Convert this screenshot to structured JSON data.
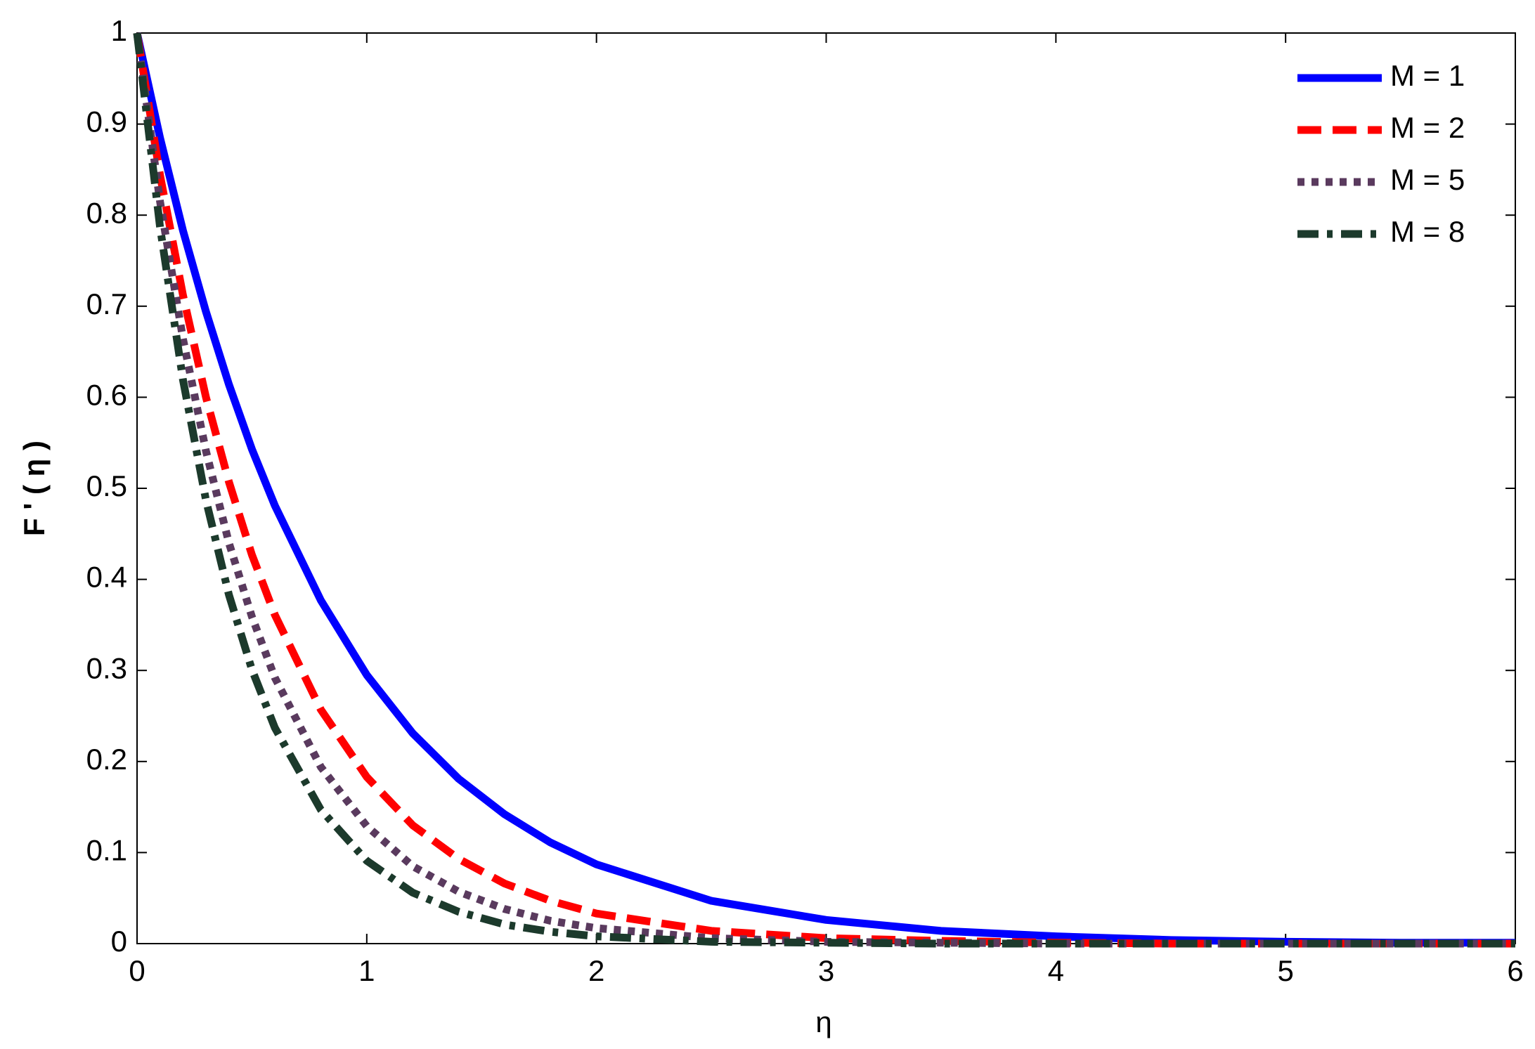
{
  "chart_data": {
    "type": "line",
    "xlabel": "η",
    "ylabel": "F ' ( η )",
    "x": [
      0,
      0.1,
      0.2,
      0.3,
      0.4,
      0.5,
      0.6,
      0.8,
      1,
      1.2,
      1.4,
      1.6,
      1.8,
      2,
      2.5,
      3,
      3.5,
      4,
      4.5,
      5,
      5.5,
      6
    ],
    "series": [
      {
        "name": "M = 1",
        "color": "#0000ff",
        "linestyle": "-",
        "values": [
          1,
          0.885,
          0.783,
          0.694,
          0.614,
          0.543,
          0.481,
          0.377,
          0.295,
          0.231,
          0.181,
          0.142,
          0.111,
          0.087,
          0.047,
          0.026,
          0.014,
          0.008,
          0.004,
          0.002,
          0.001,
          0.001
        ]
      },
      {
        "name": "M = 2",
        "color": "#ff0000",
        "linestyle": "--",
        "values": [
          1,
          0.844,
          0.712,
          0.6,
          0.507,
          0.427,
          0.361,
          0.257,
          0.183,
          0.13,
          0.093,
          0.066,
          0.047,
          0.033,
          0.014,
          0.006,
          0.003,
          0.001,
          0,
          0,
          0,
          0
        ]
      },
      {
        "name": "M = 5",
        "color": "#5a3a5e",
        "linestyle": ":",
        "values": [
          1,
          0.815,
          0.664,
          0.541,
          0.44,
          0.359,
          0.292,
          0.194,
          0.129,
          0.085,
          0.057,
          0.038,
          0.025,
          0.017,
          0.006,
          0.002,
          0.001,
          0,
          0,
          0,
          0,
          0
        ]
      },
      {
        "name": "M = 8",
        "color": "#1c3a2c",
        "linestyle": "-.",
        "values": [
          1,
          0.787,
          0.619,
          0.487,
          0.383,
          0.301,
          0.237,
          0.147,
          0.091,
          0.056,
          0.035,
          0.021,
          0.013,
          0.008,
          0.002,
          0.001,
          0,
          0,
          0,
          0,
          0,
          0
        ]
      }
    ],
    "xlim": [
      0,
      6
    ],
    "xticks": [
      0,
      1,
      2,
      3,
      4,
      5,
      6
    ],
    "ylim": [
      0,
      1
    ],
    "yticks": [
      0,
      0.1,
      0.2,
      0.3,
      0.4,
      0.5,
      0.6,
      0.7,
      0.8,
      0.9,
      1
    ],
    "grid": false,
    "legend": "top-right"
  }
}
